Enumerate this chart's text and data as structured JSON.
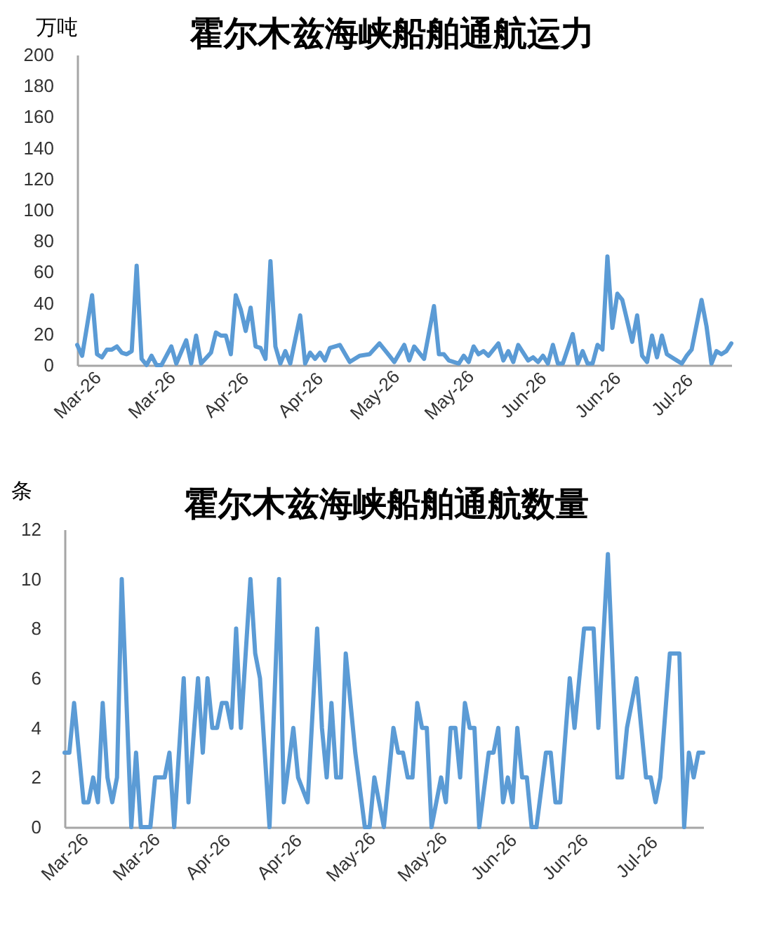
{
  "chart_data": [
    {
      "type": "line",
      "title": "霍尔木兹海峡船舶通航运力",
      "ylabel": "万吨",
      "xlim": [
        "2026-03-05",
        "2026-07-15"
      ],
      "xticks": [
        {
          "value": "2026-03-05",
          "label": "Mar-26"
        },
        {
          "value": "2026-03-20",
          "label": "Mar-26"
        },
        {
          "value": "2026-04-04",
          "label": "Apr-26"
        },
        {
          "value": "2026-04-19",
          "label": "Apr-26"
        },
        {
          "value": "2026-05-04",
          "label": "May-26"
        },
        {
          "value": "2026-05-19",
          "label": "May-26"
        },
        {
          "value": "2026-06-03",
          "label": "Jun-26"
        },
        {
          "value": "2026-06-18",
          "label": "Jun-26"
        },
        {
          "value": "2026-07-03",
          "label": "Jul-26"
        }
      ],
      "ylim": [
        0,
        200
      ],
      "yticks": [
        0,
        20,
        40,
        60,
        80,
        100,
        120,
        140,
        160,
        180,
        200
      ],
      "series": [
        {
          "color": "#5b9bd5",
          "x": [
            "2026-03-05",
            "2026-03-06",
            "2026-03-08",
            "2026-03-09",
            "2026-03-10",
            "2026-03-11",
            "2026-03-12",
            "2026-03-13",
            "2026-03-14",
            "2026-03-15",
            "2026-03-16",
            "2026-03-17",
            "2026-03-18",
            "2026-03-19",
            "2026-03-20",
            "2026-03-21",
            "2026-03-22",
            "2026-03-24",
            "2026-03-25",
            "2026-03-27",
            "2026-03-28",
            "2026-03-29",
            "2026-03-30",
            "2026-04-01",
            "2026-04-02",
            "2026-04-03",
            "2026-04-04",
            "2026-04-05",
            "2026-04-06",
            "2026-04-07",
            "2026-04-08",
            "2026-04-09",
            "2026-04-10",
            "2026-04-11",
            "2026-04-12",
            "2026-04-13",
            "2026-04-14",
            "2026-04-15",
            "2026-04-16",
            "2026-04-17",
            "2026-04-19",
            "2026-04-20",
            "2026-04-21",
            "2026-04-22",
            "2026-04-23",
            "2026-04-24",
            "2026-04-25",
            "2026-04-27",
            "2026-04-29",
            "2026-05-01",
            "2026-05-03",
            "2026-05-05",
            "2026-05-07",
            "2026-05-08",
            "2026-05-10",
            "2026-05-11",
            "2026-05-12",
            "2026-05-14",
            "2026-05-16",
            "2026-05-17",
            "2026-05-18",
            "2026-05-19",
            "2026-05-21",
            "2026-05-22",
            "2026-05-23",
            "2026-05-24",
            "2026-05-25",
            "2026-05-26",
            "2026-05-27",
            "2026-05-29",
            "2026-05-30",
            "2026-05-31",
            "2026-06-01",
            "2026-06-02",
            "2026-06-04",
            "2026-06-05",
            "2026-06-06",
            "2026-06-07",
            "2026-06-08",
            "2026-06-09",
            "2026-06-10",
            "2026-06-11",
            "2026-06-13",
            "2026-06-14",
            "2026-06-15",
            "2026-06-16",
            "2026-06-17",
            "2026-06-18",
            "2026-06-19",
            "2026-06-20",
            "2026-06-21",
            "2026-06-22",
            "2026-06-23",
            "2026-06-25",
            "2026-06-26",
            "2026-06-27",
            "2026-06-28",
            "2026-06-29",
            "2026-06-30",
            "2026-07-01",
            "2026-07-02",
            "2026-07-04",
            "2026-07-05",
            "2026-07-06",
            "2026-07-07",
            "2026-07-09",
            "2026-07-10",
            "2026-07-11",
            "2026-07-12",
            "2026-07-13",
            "2026-07-14",
            "2026-07-15"
          ],
          "values": [
            13,
            6,
            45,
            7,
            5,
            10,
            10,
            12,
            8,
            7,
            9,
            64,
            4,
            0,
            6,
            0,
            0,
            12,
            1,
            16,
            1,
            19,
            1,
            8,
            21,
            19,
            19,
            7,
            45,
            36,
            22,
            37,
            12,
            11,
            4,
            67,
            12,
            1,
            9,
            1,
            32,
            1,
            8,
            4,
            8,
            3,
            11,
            13,
            2,
            6,
            7,
            14,
            6,
            2,
            13,
            3,
            12,
            4,
            38,
            7,
            7,
            3,
            1,
            6,
            2,
            12,
            7,
            9,
            6,
            14,
            3,
            9,
            2,
            13,
            3,
            5,
            2,
            6,
            1,
            13,
            1,
            1,
            20,
            1,
            9,
            1,
            1,
            13,
            10,
            70,
            24,
            46,
            42,
            15,
            32,
            6,
            2,
            19,
            5,
            19,
            7,
            3,
            1,
            6,
            10,
            42,
            25,
            1,
            9,
            7,
            9,
            14
          ]
        }
      ]
    },
    {
      "type": "line",
      "title": "霍尔木兹海峡船舶通航数量",
      "ylabel": "条",
      "xlim": [
        "2026-03-05",
        "2026-07-17"
      ],
      "xticks": [
        {
          "value": "2026-03-05",
          "label": "Mar-26"
        },
        {
          "value": "2026-03-20",
          "label": "Mar-26"
        },
        {
          "value": "2026-04-04",
          "label": "Apr-26"
        },
        {
          "value": "2026-04-19",
          "label": "Apr-26"
        },
        {
          "value": "2026-05-04",
          "label": "May-26"
        },
        {
          "value": "2026-05-19",
          "label": "May-26"
        },
        {
          "value": "2026-06-03",
          "label": "Jun-26"
        },
        {
          "value": "2026-06-18",
          "label": "Jun-26"
        },
        {
          "value": "2026-07-03",
          "label": "Jul-26"
        }
      ],
      "ylim": [
        0,
        12
      ],
      "yticks": [
        0,
        2,
        4,
        6,
        8,
        10,
        12
      ],
      "series": [
        {
          "color": "#5b9bd5",
          "x": [
            "2026-03-05",
            "2026-03-06",
            "2026-03-07",
            "2026-03-09",
            "2026-03-10",
            "2026-03-11",
            "2026-03-12",
            "2026-03-13",
            "2026-03-14",
            "2026-03-15",
            "2026-03-16",
            "2026-03-17",
            "2026-03-19",
            "2026-03-20",
            "2026-03-21",
            "2026-03-23",
            "2026-03-24",
            "2026-03-26",
            "2026-03-27",
            "2026-03-28",
            "2026-03-30",
            "2026-03-31",
            "2026-04-02",
            "2026-04-03",
            "2026-04-04",
            "2026-04-05",
            "2026-04-06",
            "2026-04-07",
            "2026-04-08",
            "2026-04-09",
            "2026-04-10",
            "2026-04-11",
            "2026-04-13",
            "2026-04-14",
            "2026-04-15",
            "2026-04-17",
            "2026-04-19",
            "2026-04-20",
            "2026-04-22",
            "2026-04-23",
            "2026-04-25",
            "2026-04-27",
            "2026-04-28",
            "2026-04-29",
            "2026-04-30",
            "2026-05-01",
            "2026-05-02",
            "2026-05-03",
            "2026-05-05",
            "2026-05-07",
            "2026-05-08",
            "2026-05-09",
            "2026-05-11",
            "2026-05-13",
            "2026-05-14",
            "2026-05-15",
            "2026-05-16",
            "2026-05-17",
            "2026-05-18",
            "2026-05-19",
            "2026-05-20",
            "2026-05-21",
            "2026-05-23",
            "2026-05-24",
            "2026-05-25",
            "2026-05-26",
            "2026-05-27",
            "2026-05-28",
            "2026-05-29",
            "2026-05-30",
            "2026-05-31",
            "2026-06-02",
            "2026-06-03",
            "2026-06-04",
            "2026-06-05",
            "2026-06-06",
            "2026-06-07",
            "2026-06-08",
            "2026-06-09",
            "2026-06-10",
            "2026-06-11",
            "2026-06-12",
            "2026-06-14",
            "2026-06-15",
            "2026-06-16",
            "2026-06-17",
            "2026-06-19",
            "2026-06-20",
            "2026-06-22",
            "2026-06-24",
            "2026-06-25",
            "2026-06-27",
            "2026-06-29",
            "2026-06-30",
            "2026-07-01",
            "2026-07-03",
            "2026-07-04",
            "2026-07-05",
            "2026-07-06",
            "2026-07-07",
            "2026-07-08",
            "2026-07-10",
            "2026-07-12",
            "2026-07-13",
            "2026-07-14",
            "2026-07-15",
            "2026-07-16",
            "2026-07-17"
          ],
          "values": [
            3,
            3,
            5,
            1,
            1,
            2,
            1,
            5,
            2,
            1,
            2,
            10,
            0,
            3,
            0,
            0,
            2,
            2,
            3,
            0,
            6,
            1,
            6,
            3,
            6,
            4,
            4,
            5,
            5,
            4,
            8,
            4,
            10,
            7,
            6,
            0,
            10,
            1,
            4,
            2,
            1,
            8,
            4,
            2,
            5,
            2,
            2,
            7,
            3,
            0,
            0,
            2,
            0,
            4,
            3,
            3,
            2,
            2,
            5,
            4,
            4,
            0,
            2,
            1,
            4,
            4,
            2,
            5,
            4,
            4,
            0,
            3,
            3,
            4,
            1,
            2,
            1,
            4,
            2,
            2,
            0,
            0,
            3,
            3,
            1,
            1,
            6,
            4,
            8,
            8,
            4,
            11,
            2,
            2,
            4,
            6,
            4,
            2,
            2,
            1,
            2,
            7,
            7,
            0,
            3,
            2,
            3,
            3
          ]
        }
      ]
    }
  ]
}
